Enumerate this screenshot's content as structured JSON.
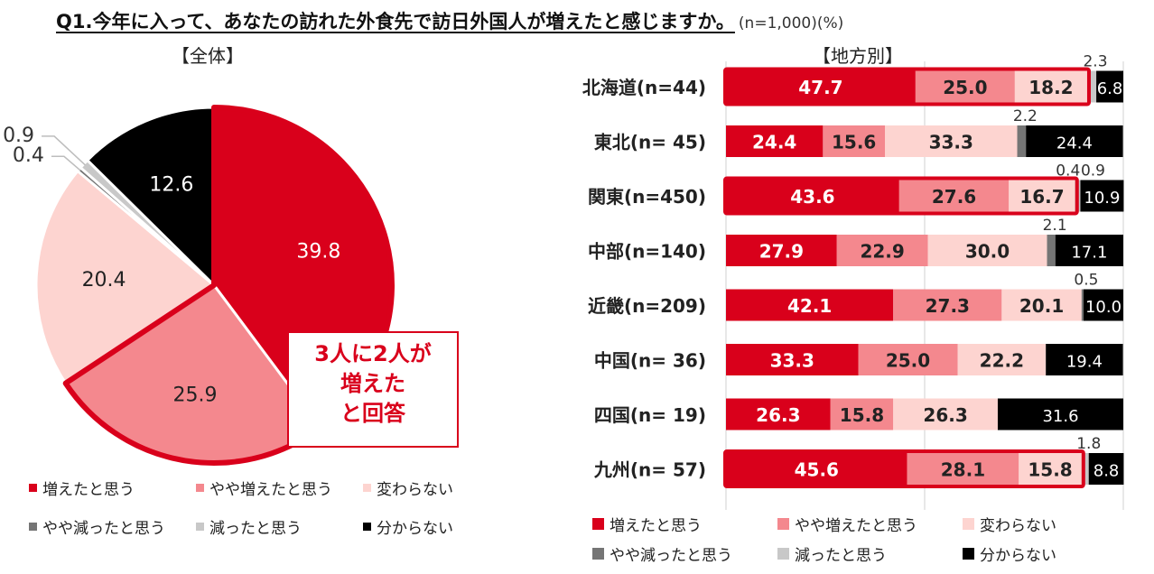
{
  "title": {
    "question": "Q1.今年に入って、あなたの訪れた外食先で訪日外国人が増えたと感じますか。",
    "note": "(n=1,000)(%)"
  },
  "callout": {
    "line1": "3人に2人が",
    "line2": "増えた",
    "line3": "と回答"
  },
  "categories": [
    "増えたと思う",
    "やや増えたと思う",
    "変わらない",
    "やや減ったと思う",
    "減ったと思う",
    "分からない"
  ],
  "colors": [
    "#d9001b",
    "#f4888e",
    "#fdd4d0",
    "#757575",
    "#c8c8c8",
    "#000000"
  ],
  "chart_data": [
    {
      "type": "pie",
      "title": "【全体】",
      "labels": [
        "増えたと思う",
        "やや増えたと思う",
        "変わらない",
        "やや減ったと思う",
        "減ったと思う",
        "分からない"
      ],
      "values": [
        39.8,
        25.9,
        20.4,
        0.4,
        0.9,
        12.6
      ],
      "highlight": "増えたと思う + やや増えたと思う (outlined in red)",
      "legend": "bottom"
    },
    {
      "type": "bar",
      "orientation": "horizontal-stacked-100",
      "title": "【地方別】",
      "categories": [
        "北海道(n=44)",
        "東北(n= 45)",
        "関東(n=450)",
        "中部(n=140)",
        "近畿(n=209)",
        "中国(n= 36)",
        "四国(n= 19)",
        "九州(n= 57)"
      ],
      "series": [
        {
          "name": "増えたと思う",
          "values": [
            47.7,
            24.4,
            43.6,
            27.9,
            42.1,
            33.3,
            26.3,
            45.6
          ]
        },
        {
          "name": "やや増えたと思う",
          "values": [
            25.0,
            15.6,
            27.6,
            22.9,
            27.3,
            25.0,
            15.8,
            28.1
          ]
        },
        {
          "name": "変わらない",
          "values": [
            18.2,
            33.3,
            16.7,
            30.0,
            20.1,
            22.2,
            26.3,
            15.8
          ]
        },
        {
          "name": "やや減ったと思う",
          "values": [
            0,
            2.2,
            0.4,
            2.1,
            0.5,
            0,
            0,
            0
          ]
        },
        {
          "name": "減ったと思う",
          "values": [
            2.3,
            0,
            0.9,
            0,
            0,
            0,
            0,
            1.8
          ]
        },
        {
          "name": "分からない",
          "values": [
            6.8,
            24.4,
            10.9,
            17.1,
            10.0,
            19.4,
            31.6,
            8.8
          ]
        }
      ],
      "labels": [
        [
          "47.7",
          "25.0",
          "18.2",
          "",
          "2.3",
          "6.8"
        ],
        [
          "24.4",
          "15.6",
          "33.3",
          "2.2",
          "",
          "24.4"
        ],
        [
          "43.6",
          "27.6",
          "16.7",
          "0.4",
          "0.9",
          "10.9"
        ],
        [
          "27.9",
          "22.9",
          "30.0",
          "2.1",
          "",
          "17.1"
        ],
        [
          "42.1",
          "27.3",
          "20.1",
          "0.5",
          "",
          "10.0"
        ],
        [
          "33.3",
          "25.0",
          "22.2",
          "",
          "",
          "19.4"
        ],
        [
          "26.3",
          "15.8",
          "26.3",
          "",
          "",
          "31.6"
        ],
        [
          "45.6",
          "28.1",
          "15.8",
          "",
          "1.8",
          "8.8"
        ]
      ],
      "highlight_rows": [
        "北海道(n=44)",
        "関東(n=450)",
        "九州(n=57)"
      ],
      "xlim": [
        0,
        100
      ],
      "grid": "vertical lines at 50 and 100",
      "legend": "bottom"
    }
  ]
}
